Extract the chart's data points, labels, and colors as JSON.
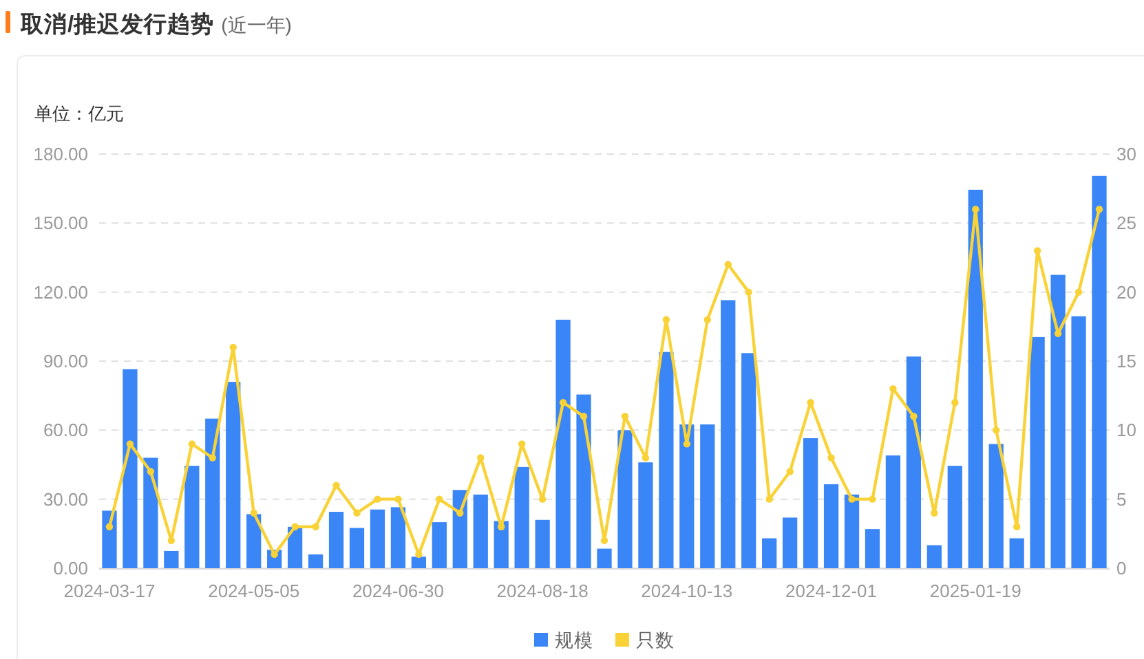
{
  "chart_data": {
    "type": "bar",
    "title": "取消/推迟发行趋势",
    "subtitle": "(近一年)",
    "ylabel": "单位：亿元",
    "categories": [
      "2024-03-17",
      null,
      null,
      null,
      null,
      null,
      null,
      "2024-05-05",
      null,
      null,
      null,
      null,
      null,
      null,
      "2024-06-30",
      null,
      null,
      null,
      null,
      null,
      null,
      "2024-08-18",
      null,
      null,
      null,
      null,
      null,
      null,
      "2024-10-13",
      null,
      null,
      null,
      null,
      null,
      null,
      "2024-12-01",
      null,
      null,
      null,
      null,
      null,
      null,
      "2025-01-19",
      null,
      null,
      null,
      null,
      null,
      null
    ],
    "series": [
      {
        "name": "规模",
        "color": "#3a86f6",
        "values": [
          25,
          86.5,
          48,
          7.5,
          44.5,
          65,
          81,
          23.5,
          8,
          18,
          6,
          24.5,
          17.5,
          25.5,
          26.5,
          5,
          20,
          34,
          32,
          20.5,
          44,
          21,
          108,
          75.5,
          8.5,
          60,
          46,
          94,
          62.5,
          62.5,
          116.5,
          93.5,
          13,
          22,
          56.5,
          36.5,
          32,
          17,
          49,
          92,
          10,
          44.5,
          164.5,
          54,
          13,
          100.5,
          127.5,
          109.5,
          170.5
        ]
      },
      {
        "name": "只数",
        "type": "line",
        "axis": "y2",
        "color": "#f8d236",
        "values": [
          3,
          9,
          7,
          2,
          9,
          8,
          16,
          4,
          1,
          3,
          3,
          6,
          4,
          5,
          5,
          1,
          5,
          4,
          8,
          3,
          9,
          5,
          12,
          11,
          2,
          11,
          8,
          18,
          9,
          18,
          22,
          20,
          5,
          7,
          12,
          8,
          5,
          5,
          13,
          11,
          4,
          12,
          26,
          10,
          3,
          23,
          17,
          20,
          26
        ]
      }
    ],
    "ylim": [
      0,
      180
    ],
    "yticks": [
      {
        "value": 0,
        "label": "0.00"
      },
      {
        "value": 30,
        "label": "30.00"
      },
      {
        "value": 60,
        "label": "60.00"
      },
      {
        "value": 90,
        "label": "90.00"
      },
      {
        "value": 120,
        "label": "120.00"
      },
      {
        "value": 150,
        "label": "150.00"
      },
      {
        "value": 180,
        "label": "180.00"
      }
    ],
    "y2lim": [
      0,
      30
    ],
    "y2ticks": [
      0,
      5,
      10,
      15,
      20,
      25,
      30
    ],
    "grid": "y",
    "legend": "bottom",
    "marker": "circle",
    "line_style": "solid"
  }
}
